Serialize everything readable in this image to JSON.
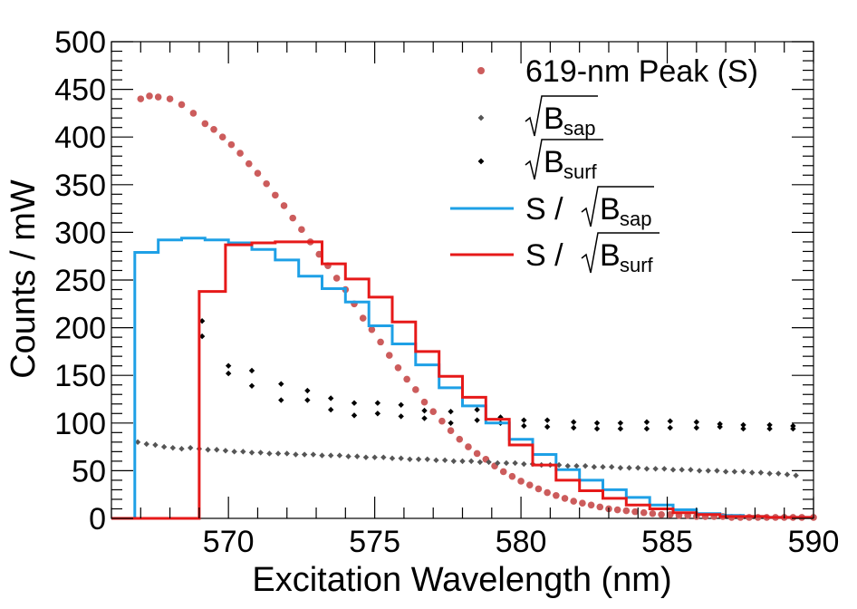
{
  "chart_data": {
    "type": "mixed",
    "xlabel": "Excitation Wavelength (nm)",
    "ylabel": "Counts / mW",
    "xlim": [
      566,
      590
    ],
    "ylim": [
      0,
      500
    ],
    "x_ticks": [
      "570",
      "575",
      "580",
      "585",
      "590"
    ],
    "y_ticks": [
      "0",
      "50",
      "100",
      "150",
      "200",
      "250",
      "300",
      "350",
      "400",
      "450",
      "500"
    ],
    "grid": false,
    "legend_position": "top-right",
    "legend": [
      {
        "label": "619-nm Peak (S)",
        "style": "markers",
        "color": "#cc5c5c"
      },
      {
        "root": "",
        "base": "B",
        "sub": "sap",
        "style": "markers",
        "color": "#555555"
      },
      {
        "root": "",
        "base": "B",
        "sub": "surf",
        "style": "markers",
        "color": "#000000"
      },
      {
        "prefix": "S / ",
        "base": "B",
        "sub": "sap",
        "style": "line",
        "color": "#1ea0e6"
      },
      {
        "prefix": "S / ",
        "base": "B",
        "sub": "surf",
        "style": "line",
        "color": "#e61919"
      }
    ],
    "series": [
      {
        "kind": "scatter",
        "color": "#cc5c5c",
        "x": [
          567.0,
          567.3,
          567.6,
          568.0,
          568.4,
          568.8,
          569.2,
          569.5,
          569.8,
          570.1,
          570.4,
          570.7,
          571.0,
          571.3,
          571.6,
          571.9,
          572.2,
          572.5,
          572.8,
          573.1,
          573.4,
          573.7,
          574.0,
          574.3,
          574.6,
          574.9,
          575.2,
          575.5,
          575.8,
          576.1,
          576.4,
          576.7,
          577.0,
          577.3,
          577.6,
          577.9,
          578.2,
          578.5,
          578.8,
          579.1,
          579.4,
          579.7,
          580.0,
          580.3,
          580.6,
          580.9,
          581.2,
          581.5,
          581.8,
          582.1,
          582.4,
          582.7,
          583.0,
          583.3,
          583.6,
          583.9,
          584.2,
          584.5,
          584.8,
          585.1,
          585.4,
          585.7,
          586.0,
          586.3,
          586.6,
          586.9,
          587.2,
          587.5,
          587.8,
          588.1,
          588.4,
          588.7,
          589.0,
          589.3,
          589.6,
          590.0
        ],
        "y": [
          440,
          443,
          442,
          440,
          434,
          425,
          414,
          408,
          400,
          392,
          383,
          372,
          362,
          351,
          339,
          328,
          315,
          303,
          290,
          277,
          265,
          252,
          240,
          225,
          210,
          198,
          185,
          171,
          158,
          146,
          135,
          122,
          112,
          102,
          92,
          83,
          75,
          68,
          62,
          55,
          49,
          44,
          39,
          35,
          31,
          27,
          24,
          21,
          18,
          16,
          14,
          12,
          10,
          9,
          8,
          7,
          6,
          5,
          4,
          4,
          3,
          3,
          2,
          2,
          2,
          2,
          1,
          1,
          1,
          1,
          1,
          1,
          1,
          1,
          1,
          1
        ]
      },
      {
        "kind": "scatter",
        "color": "#555555",
        "x": [
          566.9,
          567.2,
          567.5,
          567.8,
          568.1,
          568.4,
          568.7,
          569.0,
          569.3,
          569.6,
          569.9,
          570.2,
          570.5,
          570.8,
          571.1,
          571.4,
          571.7,
          572.0,
          572.3,
          572.6,
          572.9,
          573.2,
          573.5,
          573.8,
          574.1,
          574.4,
          574.7,
          575.0,
          575.3,
          575.6,
          575.9,
          576.2,
          576.5,
          576.8,
          577.1,
          577.4,
          577.7,
          578.0,
          578.3,
          578.6,
          578.9,
          579.2,
          579.5,
          579.8,
          580.1,
          580.4,
          580.7,
          581.0,
          581.3,
          581.6,
          581.9,
          582.2,
          582.5,
          582.8,
          583.1,
          583.4,
          583.7,
          584.0,
          584.3,
          584.6,
          584.9,
          585.2,
          585.5,
          585.8,
          586.1,
          586.4,
          586.7,
          587.0,
          587.3,
          587.6,
          587.9,
          588.2,
          588.5,
          588.8,
          589.1,
          589.4
        ],
        "y": [
          80,
          78,
          77,
          75,
          74,
          73,
          74,
          73,
          72,
          72,
          71,
          70,
          70,
          69,
          69,
          68,
          68,
          68,
          67,
          67,
          67,
          66,
          66,
          66,
          65,
          65,
          64,
          64,
          64,
          63,
          63,
          62,
          62,
          62,
          61,
          61,
          60,
          60,
          60,
          59,
          59,
          58,
          58,
          58,
          57,
          57,
          56,
          56,
          56,
          55,
          55,
          55,
          54,
          54,
          54,
          53,
          53,
          53,
          52,
          52,
          52,
          51,
          51,
          51,
          50,
          50,
          50,
          49,
          49,
          49,
          48,
          48,
          47,
          47,
          46,
          45
        ]
      },
      {
        "kind": "scatter",
        "color": "#000000",
        "x": [
          569.1,
          569.1,
          570.0,
          570.0,
          570.8,
          570.8,
          571.8,
          571.8,
          572.7,
          572.7,
          573.5,
          573.5,
          574.3,
          574.3,
          575.1,
          575.1,
          575.9,
          575.9,
          576.7,
          576.7,
          577.6,
          577.6,
          578.5,
          578.5,
          579.3,
          579.3,
          580.1,
          580.1,
          580.9,
          580.9,
          581.8,
          581.8,
          582.6,
          582.6,
          583.4,
          583.4,
          584.3,
          584.3,
          585.1,
          585.1,
          586.0,
          586.0,
          586.8,
          586.8,
          587.6,
          587.6,
          588.5,
          588.5,
          589.3,
          589.3
        ],
        "y": [
          207,
          191,
          160,
          152,
          155,
          139,
          141,
          124,
          134,
          124,
          126,
          114,
          121,
          108,
          121,
          110,
          119,
          107,
          113,
          105,
          112,
          100,
          114,
          103,
          106,
          100,
          103,
          97,
          103,
          96,
          101,
          95,
          100,
          94,
          100,
          94,
          101,
          94,
          102,
          95,
          101,
          95,
          99,
          96,
          98,
          94,
          98,
          94,
          97,
          94
        ]
      },
      {
        "kind": "step",
        "color": "#1ea0e6",
        "edges": [
          566,
          566.8,
          567.6,
          568.4,
          569.2,
          570.0,
          570.8,
          571.6,
          572.4,
          573.2,
          574.0,
          574.8,
          575.6,
          576.4,
          577.2,
          578.0,
          578.8,
          579.6,
          580.4,
          581.2,
          582.0,
          582.8,
          583.6,
          584.4,
          585.2,
          586.0,
          586.8,
          587.6,
          588.4,
          589.2,
          590.0
        ],
        "values": [
          0,
          279,
          292,
          294,
          292,
          289,
          282,
          271,
          254,
          241,
          227,
          202,
          183,
          161,
          137,
          118,
          100,
          83,
          67,
          51,
          40,
          30,
          22,
          14,
          9,
          5,
          3,
          2,
          1,
          1
        ]
      },
      {
        "kind": "step",
        "color": "#e61919",
        "edges": [
          566,
          566.8,
          567.6,
          568.4,
          569.0,
          569.9,
          570.8,
          571.6,
          572.4,
          573.2,
          574.0,
          574.8,
          575.6,
          576.4,
          577.2,
          578.0,
          578.8,
          579.6,
          580.4,
          581.2,
          582.0,
          582.8,
          583.6,
          584.4,
          585.2,
          586.0,
          586.8,
          587.6,
          588.4,
          589.2,
          590.0
        ],
        "values": [
          0,
          0,
          0,
          0,
          238,
          287,
          289,
          290,
          290,
          267,
          251,
          232,
          206,
          175,
          149,
          127,
          104,
          77,
          56,
          40,
          29,
          21,
          14,
          10,
          6,
          4,
          2,
          2,
          1,
          1
        ]
      }
    ]
  }
}
